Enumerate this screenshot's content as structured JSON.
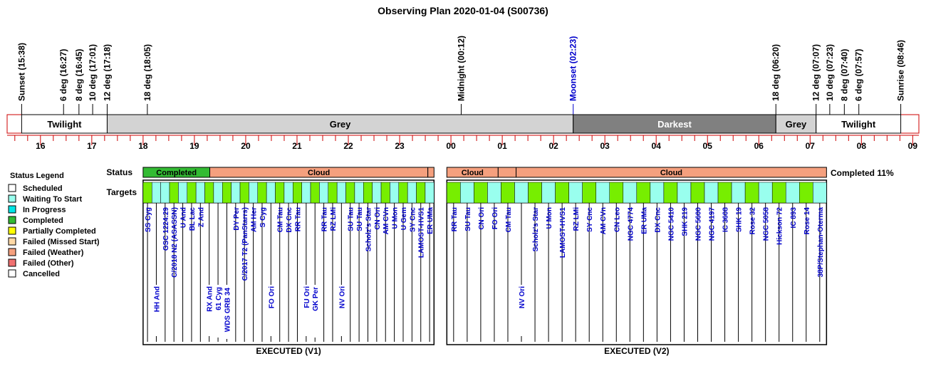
{
  "title": "Observing Plan 2020-01-04 (S00736)",
  "colors": {
    "twilight": "#ffffff",
    "grey": "#d3d3d3",
    "darkest": "#808080",
    "axis": "#cc0000",
    "moonset": "#0000cc",
    "scheduled": "#ffffff",
    "waiting": "#99ffee",
    "in_progress": "#00e6e6",
    "completed": "#33bb33",
    "partially": "#ffff00",
    "failed_missed": "#ffd9a6",
    "failed_weather": "#f5a07e",
    "failed_other": "#f07070",
    "cancelled": "#ffffff",
    "target_green": "#77ee00",
    "target_teal": "#99ffee",
    "label_blue": "#0000cc"
  },
  "time_axis": {
    "start_hour": 15.35,
    "end_hour": 33.12,
    "tick_labels": [
      "16",
      "17",
      "18",
      "19",
      "20",
      "21",
      "22",
      "23",
      "00",
      "01",
      "02",
      "03",
      "04",
      "05",
      "06",
      "07",
      "08",
      "09"
    ]
  },
  "events": [
    {
      "label": "Sunset (15:38)",
      "hour": 15.633
    },
    {
      "label": "6 deg (16:27)",
      "hour": 16.45
    },
    {
      "label": "8 deg (16:45)",
      "hour": 16.75
    },
    {
      "label": "10 deg (17:01)",
      "hour": 17.017
    },
    {
      "label": "12 deg (17:18)",
      "hour": 17.3
    },
    {
      "label": "18 deg (18:05)",
      "hour": 18.083
    },
    {
      "label": "Midnight (00:12)",
      "hour": 24.2
    },
    {
      "label": "Moonset (02:23)",
      "hour": 26.383,
      "moon": true
    },
    {
      "label": "18 deg (06:20)",
      "hour": 30.333
    },
    {
      "label": "12 deg (07:07)",
      "hour": 31.117
    },
    {
      "label": "10 deg (07:23)",
      "hour": 31.383
    },
    {
      "label": "8 deg (07:40)",
      "hour": 31.667
    },
    {
      "label": "6 deg (07:57)",
      "hour": 31.95
    },
    {
      "label": "Sunrise (08:46)",
      "hour": 32.767
    }
  ],
  "sky_bands": [
    {
      "label": "Twilight",
      "start": 15.633,
      "end": 17.3,
      "kind": "twilight"
    },
    {
      "label": "Grey",
      "start": 17.3,
      "end": 26.383,
      "kind": "grey"
    },
    {
      "label": "Darkest",
      "start": 26.383,
      "end": 30.333,
      "kind": "darkest"
    },
    {
      "label": "Grey",
      "start": 30.333,
      "end": 31.117,
      "kind": "grey"
    },
    {
      "label": "Twilight",
      "start": 31.117,
      "end": 32.767,
      "kind": "twilight"
    }
  ],
  "row_labels": {
    "status": "Status",
    "targets": "Targets"
  },
  "completion_text": "Completed 11%",
  "legend": {
    "title": "Status Legend",
    "items": [
      {
        "label": "Scheduled",
        "color": "#ffffff"
      },
      {
        "label": "Waiting To Start",
        "color": "#99ffee"
      },
      {
        "label": "In Progress",
        "color": "#00e6e6"
      },
      {
        "label": "Completed",
        "color": "#33bb33"
      },
      {
        "label": "Partially Completed",
        "color": "#ffff00"
      },
      {
        "label": "Failed (Missed Start)",
        "color": "#ffd9a6"
      },
      {
        "label": "Failed (Weather)",
        "color": "#f5a07e"
      },
      {
        "label": "Failed (Other)",
        "color": "#f07070"
      },
      {
        "label": "Cancelled",
        "color": "#ffffff"
      }
    ]
  },
  "panels": [
    {
      "title": "EXECUTED (V1)",
      "start": 18.0,
      "end": 23.67,
      "status_segments": [
        {
          "label": "Completed",
          "start": 18.0,
          "end": 19.3,
          "status": "completed"
        },
        {
          "label": "Cloud",
          "start": 19.3,
          "end": 23.55,
          "status": "failed_weather"
        },
        {
          "label": "",
          "start": 23.55,
          "end": 23.67,
          "status": "failed_weather"
        }
      ],
      "targets": [
        {
          "name": "SS Cyg",
          "level": 0,
          "fill": "target_green"
        },
        {
          "name": "HH And",
          "level": 1,
          "fill": "target_teal"
        },
        {
          "name": "GSC 1224:29",
          "level": 0,
          "fill": "target_teal"
        },
        {
          "name": "C/2018 N2 (ASASSN)",
          "level": 0,
          "fill": "target_green"
        },
        {
          "name": "U And",
          "level": 0,
          "fill": "target_teal"
        },
        {
          "name": "BL Lac",
          "level": 0,
          "fill": "target_green"
        },
        {
          "name": "Z And",
          "level": 0,
          "fill": "target_teal"
        },
        {
          "name": "RX And",
          "level": 1,
          "fill": "target_green"
        },
        {
          "name": "61 Cyg",
          "level": 2,
          "fill": "target_teal"
        },
        {
          "name": "WDS GRB 34",
          "level": 3,
          "fill": "target_green"
        },
        {
          "name": "DY Per",
          "level": 0,
          "fill": "target_teal"
        },
        {
          "name": "C/2017 T2 (PanStarrs)",
          "level": 0,
          "fill": "target_green"
        },
        {
          "name": "AM Her",
          "level": 0,
          "fill": "target_teal"
        },
        {
          "name": "S Cyg",
          "level": 0,
          "fill": "target_green"
        },
        {
          "name": "FO Ori",
          "level": 1,
          "fill": "target_teal"
        },
        {
          "name": "CM Tau",
          "level": 0,
          "fill": "target_green"
        },
        {
          "name": "DX Cnc",
          "level": 0,
          "fill": "target_teal"
        },
        {
          "name": "RR Tau",
          "level": 0,
          "fill": "target_green"
        },
        {
          "name": "FU Ori",
          "level": 1,
          "fill": "target_teal"
        },
        {
          "name": "GK Per",
          "level": 2,
          "fill": "target_green"
        },
        {
          "name": "RR Tau",
          "level": 0,
          "fill": "target_teal"
        },
        {
          "name": "RZ LMi",
          "level": 0,
          "fill": "target_green"
        },
        {
          "name": "NV Ori",
          "level": 1,
          "fill": "target_teal"
        },
        {
          "name": "SU Tau",
          "level": 0,
          "fill": "target_green"
        },
        {
          "name": "SU Tau",
          "level": 0,
          "fill": "target_teal"
        },
        {
          "name": "Scholz's Star",
          "level": 0,
          "fill": "target_green"
        },
        {
          "name": "CN Ori",
          "level": 0,
          "fill": "target_teal"
        },
        {
          "name": "AM CVn",
          "level": 0,
          "fill": "target_green"
        },
        {
          "name": "U Mon",
          "level": 0,
          "fill": "target_teal"
        },
        {
          "name": "U Gem",
          "level": 0,
          "fill": "target_green"
        },
        {
          "name": "SY Cnc",
          "level": 0,
          "fill": "target_teal"
        },
        {
          "name": "LAMOST-HVS1",
          "level": 0,
          "fill": "target_green"
        },
        {
          "name": "ER UMa",
          "level": 0,
          "fill": "target_teal"
        }
      ]
    },
    {
      "title": "EXECUTED (V2)",
      "start": 23.92,
      "end": 31.32,
      "status_segments": [
        {
          "label": "Cloud",
          "start": 23.92,
          "end": 24.92,
          "status": "failed_weather"
        },
        {
          "label": "",
          "start": 24.92,
          "end": 25.27,
          "status": "failed_weather"
        },
        {
          "label": "Cloud",
          "start": 25.27,
          "end": 31.32,
          "status": "failed_weather"
        }
      ],
      "targets": [
        {
          "name": "RR Tau",
          "level": 0,
          "fill": "target_green"
        },
        {
          "name": "SU Tau",
          "level": 0,
          "fill": "target_teal"
        },
        {
          "name": "CN Ori",
          "level": 0,
          "fill": "target_green"
        },
        {
          "name": "FO Ori",
          "level": 0,
          "fill": "target_teal"
        },
        {
          "name": "CM Tau",
          "level": 0,
          "fill": "target_green"
        },
        {
          "name": "NV Ori",
          "level": 1,
          "fill": "target_teal"
        },
        {
          "name": "Scholz's Star",
          "level": 0,
          "fill": "target_green"
        },
        {
          "name": "U Mon",
          "level": 0,
          "fill": "target_teal"
        },
        {
          "name": "LAMOST-HVS1",
          "level": 0,
          "fill": "target_green"
        },
        {
          "name": "RZ LMi",
          "level": 0,
          "fill": "target_teal"
        },
        {
          "name": "SY Cnc",
          "level": 0,
          "fill": "target_green"
        },
        {
          "name": "AM CVn",
          "level": 0,
          "fill": "target_teal"
        },
        {
          "name": "CN Leo",
          "level": 0,
          "fill": "target_green"
        },
        {
          "name": "NGC 4774",
          "level": 0,
          "fill": "target_teal"
        },
        {
          "name": "ER UMa",
          "level": 0,
          "fill": "target_green"
        },
        {
          "name": "DX Cnc",
          "level": 0,
          "fill": "target_teal"
        },
        {
          "name": "NGC 5410",
          "level": 0,
          "fill": "target_green"
        },
        {
          "name": "SHK 219",
          "level": 0,
          "fill": "target_teal"
        },
        {
          "name": "NGC 5600",
          "level": 0,
          "fill": "target_green"
        },
        {
          "name": "NGC 4197",
          "level": 0,
          "fill": "target_teal"
        },
        {
          "name": "IC 3608",
          "level": 0,
          "fill": "target_green"
        },
        {
          "name": "SHK 19",
          "level": 0,
          "fill": "target_teal"
        },
        {
          "name": "Rose 32",
          "level": 0,
          "fill": "target_green"
        },
        {
          "name": "NGC 5058",
          "level": 0,
          "fill": "target_teal"
        },
        {
          "name": "Hickson 72",
          "level": 0,
          "fill": "target_green"
        },
        {
          "name": "IC 893",
          "level": 0,
          "fill": "target_teal"
        },
        {
          "name": "Rose 14",
          "level": 0,
          "fill": "target_green"
        },
        {
          "name": "38P/Stephan-Oterma",
          "level": 0,
          "fill": "target_teal"
        }
      ]
    }
  ],
  "chart_data": {
    "type": "table",
    "title": "Observing Plan 2020-01-04 (S00736)",
    "x_unit": "hour of night (local time)",
    "completed_fraction": "11%"
  }
}
